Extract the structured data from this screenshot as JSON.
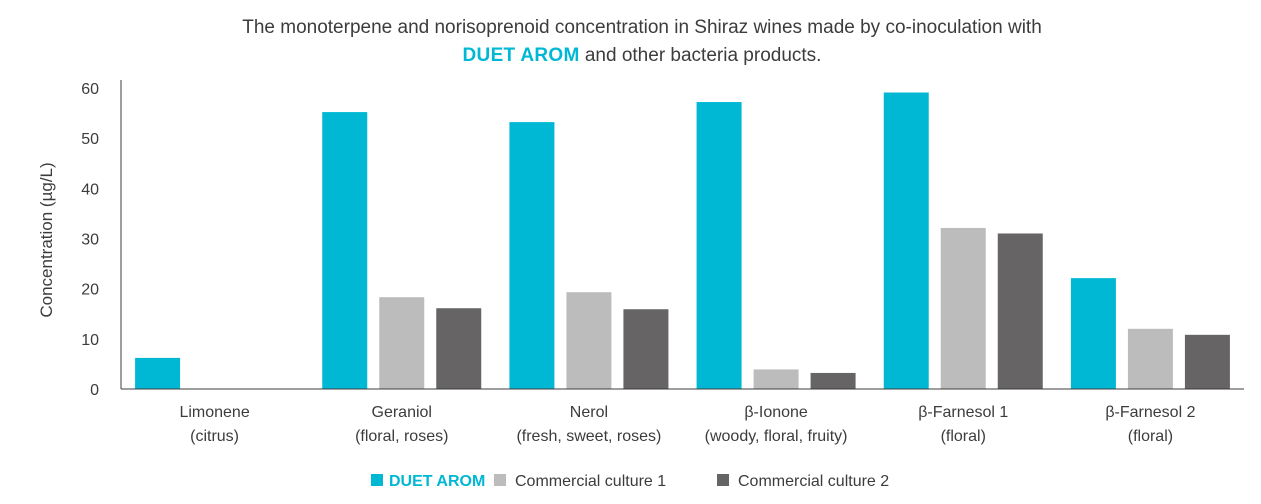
{
  "chart_data": {
    "type": "bar",
    "title_line1": "The monoterpene and norisoprenoid concentration in Shiraz wines made by co-inoculation with",
    "title_brand": "DUET AROM",
    "title_line2_rest": " and other bacteria products.",
    "ylabel": "Concentration (µg/L)",
    "xlabel": "",
    "ylim": [
      0,
      60
    ],
    "yticks": [
      0,
      10,
      20,
      30,
      40,
      50,
      60
    ],
    "grid": false,
    "legend_position": "bottom-center",
    "categories": [
      [
        "Limonene",
        "(citrus)"
      ],
      [
        "Geraniol",
        "(floral, roses)"
      ],
      [
        "Nerol",
        "(fresh, sweet, roses)"
      ],
      [
        "β-Ionone",
        "(woody, floral, fruity)"
      ],
      [
        "β-Farnesol 1",
        "(floral)"
      ],
      [
        "β-Farnesol 2",
        "(floral)"
      ]
    ],
    "series": [
      {
        "name": "DUET AROM",
        "color": "#00b8d4",
        "values": [
          6.2,
          55.2,
          53.2,
          57.2,
          59.1,
          22.1
        ]
      },
      {
        "name": "Commercial culture 1",
        "color": "#bdbcbd",
        "values": [
          0,
          18.3,
          19.3,
          3.9,
          32.1,
          12.0
        ]
      },
      {
        "name": "Commercial culture 2",
        "color": "#666465",
        "values": [
          0,
          16.1,
          15.9,
          3.2,
          31.0,
          10.8
        ]
      }
    ]
  }
}
